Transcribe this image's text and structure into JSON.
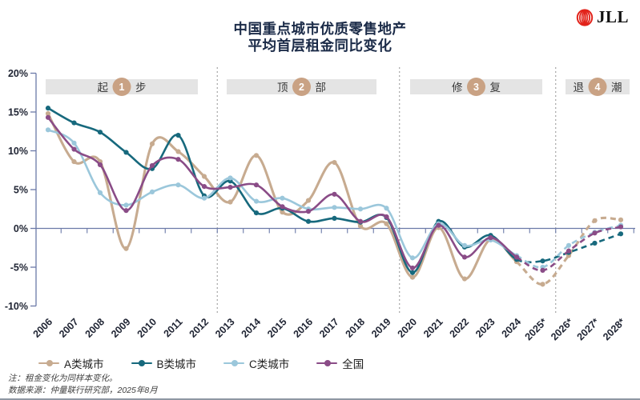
{
  "logo": {
    "text": "JLL",
    "mark_color": "#e2231a"
  },
  "title": {
    "line1": "中国重点城市优质零售地产",
    "line2": "平均首层租金同比变化"
  },
  "notes": {
    "line1": "注：租金变化为同样本变化。",
    "line2": "数据来源：仲量联行研究部，2025年8月"
  },
  "chart_data": {
    "type": "line",
    "title": "中国重点城市优质零售地产 平均首层租金同比变化",
    "x_labels": [
      "2006",
      "2007",
      "2008",
      "2009",
      "2010",
      "2011",
      "2012",
      "2013",
      "2014",
      "2015",
      "2016",
      "2017",
      "2018",
      "2019",
      "2020",
      "2021",
      "2022",
      "2023",
      "2024",
      "2025*",
      "2026*",
      "2027*",
      "2028*"
    ],
    "y_tick_labels": [
      "20%",
      "15%",
      "10%",
      "5%",
      "0%",
      "-5%",
      "-10%"
    ],
    "y_tick_values": [
      20,
      15,
      10,
      5,
      0,
      -5,
      -10
    ],
    "ylim": [
      -10,
      20
    ],
    "forecast_start_index": 18,
    "phase_divider_after_index": [
      6,
      13,
      19
    ],
    "phases": [
      {
        "pre": "起",
        "num": "1",
        "post": "步"
      },
      {
        "pre": "顶",
        "num": "2",
        "post": "部"
      },
      {
        "pre": "修",
        "num": "3",
        "post": "复"
      },
      {
        "pre": "退",
        "num": "4",
        "post": "潮"
      }
    ],
    "series": [
      {
        "name": "A类城市",
        "color": "#c7ab90",
        "values": [
          14.8,
          8.6,
          8.6,
          -2.6,
          10.9,
          9.9,
          6.7,
          3.4,
          9.4,
          2.1,
          3.6,
          8.5,
          0.3,
          0.6,
          -6.3,
          0.1,
          -6.5,
          -1.4,
          -4.3,
          -7.2,
          -3.5,
          1.0,
          1.1
        ]
      },
      {
        "name": "B类城市",
        "color": "#17697d",
        "values": [
          15.5,
          13.6,
          12.4,
          9.8,
          7.7,
          12.0,
          4.2,
          6.1,
          2.0,
          2.6,
          0.9,
          1.3,
          0.8,
          1.4,
          -5.7,
          0.9,
          -2.4,
          -0.9,
          -4.0,
          -4.2,
          -3.1,
          -1.9,
          -0.7
        ]
      },
      {
        "name": "C类城市",
        "color": "#9bc7db",
        "values": [
          12.7,
          11.0,
          4.6,
          3.0,
          4.7,
          5.6,
          3.9,
          6.5,
          3.5,
          3.9,
          2.5,
          2.7,
          2.5,
          2.6,
          -3.8,
          0.6,
          -2.2,
          -1.5,
          -3.5,
          -5.0,
          -2.2,
          -0.5,
          0.4
        ]
      },
      {
        "name": "全国",
        "color": "#8a4c87",
        "values": [
          14.3,
          10.2,
          8.2,
          2.3,
          8.1,
          8.9,
          5.4,
          5.3,
          5.6,
          2.8,
          2.2,
          4.4,
          0.9,
          1.5,
          -5.1,
          0.4,
          -3.7,
          -1.2,
          -3.7,
          -5.4,
          -2.9,
          -0.6,
          0.2
        ]
      }
    ],
    "axis_color": "#6b79a8",
    "label_color": "#1f2433",
    "divider_color": "#9b9b9b",
    "phase_band_color": "#e4e4e4",
    "phase_text_color": "#3a3a3a",
    "badge_color": "#c9a284",
    "legend_position": "bottom-left",
    "grid": "zero-line-only"
  }
}
